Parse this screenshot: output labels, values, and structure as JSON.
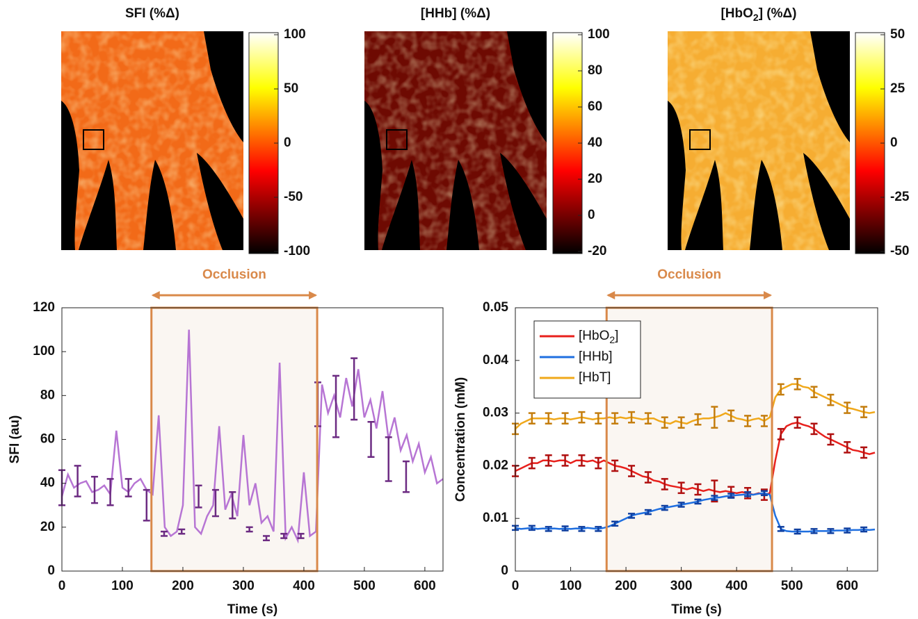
{
  "heatmaps": [
    {
      "title": "SFI (%Δ)",
      "clim": [
        -100,
        100
      ],
      "ticks": [
        100,
        50,
        0,
        -50,
        -100
      ],
      "color": "#f26a18"
    },
    {
      "title": "[HHb] (%Δ)",
      "clim": [
        -20,
        100
      ],
      "ticks": [
        100,
        80,
        60,
        40,
        20,
        0,
        -20
      ],
      "color": "#6e0a02"
    },
    {
      "title": [
        "[HbO",
        "2",
        "] (%Δ)"
      ],
      "clim": [
        -50,
        50
      ],
      "ticks": [
        50,
        25,
        0,
        -25,
        -50
      ],
      "color": "#f6ad32"
    }
  ],
  "chart_data": [
    {
      "type": "line",
      "xlabel": "Time (s)",
      "ylabel": "SFI (au)",
      "xlim": [
        0,
        630
      ],
      "xticks": [
        0,
        100,
        200,
        300,
        400,
        500,
        600
      ],
      "ylim": [
        0,
        120
      ],
      "yticks": [
        0,
        20,
        40,
        60,
        80,
        100,
        120
      ],
      "occlusion": {
        "label": "Occlusion",
        "range": [
          148,
          422
        ],
        "color": "#d9894a"
      },
      "x": [
        0,
        10,
        20,
        30,
        40,
        50,
        60,
        70,
        80,
        90,
        100,
        110,
        120,
        130,
        140,
        150,
        160,
        170,
        180,
        190,
        200,
        210,
        220,
        230,
        240,
        250,
        260,
        270,
        280,
        290,
        300,
        310,
        320,
        330,
        340,
        350,
        360,
        370,
        380,
        390,
        400,
        410,
        420,
        430,
        440,
        450,
        460,
        470,
        480,
        490,
        500,
        510,
        520,
        530,
        540,
        550,
        560,
        570,
        580,
        590,
        600,
        610,
        620,
        630
      ],
      "series": [
        {
          "color": "#b775d4",
          "values": [
            34,
            44,
            38,
            40,
            41,
            36,
            37,
            39,
            35,
            64,
            38,
            36,
            40,
            42,
            37,
            35,
            71,
            20,
            16,
            18,
            30,
            110,
            20,
            17,
            25,
            30,
            66,
            28,
            35,
            25,
            62,
            30,
            40,
            22,
            25,
            18,
            95,
            15,
            20,
            14,
            45,
            16,
            18,
            85,
            72,
            80,
            70,
            88,
            75,
            92,
            70,
            78,
            65,
            82,
            60,
            70,
            55,
            62,
            50,
            58,
            45,
            52,
            40,
            42
          ],
          "errorbars": {
            "color": "#6c2b82",
            "x": [
              0,
              26,
              54,
              80,
              110,
              140,
              169,
              198,
              226,
              254,
              282,
              310,
              338,
              367,
              395,
              423,
              453,
              483,
              511,
              540,
              569
            ],
            "values": [
              38,
              41,
              37,
              36,
              38,
              30,
              17,
              18,
              34,
              31,
              30,
              19,
              15,
              16,
              16,
              76,
              75,
              83,
              60,
              51,
              43
            ],
            "errors": [
              8,
              7,
              6,
              6,
              4,
              7,
              1,
              1,
              5,
              6,
              6,
              1,
              1,
              1,
              1,
              10,
              14,
              14,
              8,
              10,
              7
            ]
          }
        }
      ]
    },
    {
      "type": "line",
      "xlabel": "Time (s)",
      "ylabel": "Concentration (mM)",
      "xlim": [
        0,
        655
      ],
      "xticks": [
        0,
        100,
        200,
        300,
        400,
        500,
        600
      ],
      "ylim": [
        0,
        0.05
      ],
      "yticks": [
        0,
        0.01,
        0.02,
        0.03,
        0.04,
        0.05
      ],
      "legend": "upper left",
      "occlusion": {
        "label": "Occlusion",
        "range": [
          165,
          464
        ],
        "color": "#d9894a"
      },
      "x": [
        0,
        10,
        20,
        30,
        40,
        50,
        60,
        70,
        80,
        90,
        100,
        110,
        120,
        130,
        140,
        150,
        160,
        170,
        180,
        190,
        200,
        210,
        220,
        230,
        240,
        250,
        260,
        270,
        280,
        290,
        300,
        310,
        320,
        330,
        340,
        350,
        360,
        370,
        380,
        390,
        400,
        410,
        420,
        430,
        440,
        450,
        460,
        470,
        480,
        490,
        500,
        510,
        520,
        530,
        540,
        550,
        560,
        570,
        580,
        590,
        600,
        610,
        620,
        630,
        640,
        650
      ],
      "series": [
        {
          "name": [
            "[HbO",
            "2",
            "]"
          ],
          "color": "#e8201c",
          "values": [
            0.019,
            0.0195,
            0.02,
            0.0205,
            0.0205,
            0.021,
            0.021,
            0.0208,
            0.021,
            0.021,
            0.0205,
            0.021,
            0.021,
            0.0208,
            0.021,
            0.0205,
            0.021,
            0.0205,
            0.02,
            0.0198,
            0.0195,
            0.019,
            0.0185,
            0.018,
            0.0178,
            0.0172,
            0.017,
            0.0165,
            0.0162,
            0.016,
            0.0158,
            0.0155,
            0.0158,
            0.0155,
            0.0152,
            0.0155,
            0.0152,
            0.015,
            0.0152,
            0.015,
            0.0148,
            0.015,
            0.0148,
            0.0145,
            0.0148,
            0.0145,
            0.0148,
            0.021,
            0.026,
            0.0275,
            0.028,
            0.0282,
            0.0278,
            0.0275,
            0.027,
            0.0262,
            0.0255,
            0.025,
            0.0245,
            0.024,
            0.0235,
            0.023,
            0.0228,
            0.0225,
            0.0222,
            0.0225
          ],
          "errorbars": {
            "color": "#b01010",
            "x": [
              0,
              30,
              60,
              90,
              120,
              150,
              180,
              210,
              240,
              270,
              300,
              330,
              360,
              390,
              420,
              450,
              480,
              510,
              540,
              570,
              600,
              630
            ],
            "values": [
              0.019,
              0.0205,
              0.021,
              0.021,
              0.021,
              0.0205,
              0.02,
              0.019,
              0.0178,
              0.0165,
              0.0158,
              0.0155,
              0.0152,
              0.015,
              0.0148,
              0.0145,
              0.026,
              0.0282,
              0.027,
              0.025,
              0.0235,
              0.0225
            ],
            "errors": [
              0.001,
              0.001,
              0.001,
              0.001,
              0.001,
              0.001,
              0.001,
              0.001,
              0.001,
              0.001,
              0.001,
              0.001,
              0.002,
              0.001,
              0.001,
              0.001,
              0.001,
              0.001,
              0.001,
              0.001,
              0.001,
              0.001
            ]
          }
        },
        {
          "name": "[HHb]",
          "color": "#1f6fe0",
          "values": [
            0.0082,
            0.008,
            0.0081,
            0.0082,
            0.008,
            0.0081,
            0.008,
            0.0081,
            0.008,
            0.0081,
            0.008,
            0.0081,
            0.008,
            0.0082,
            0.0081,
            0.008,
            0.0082,
            0.0085,
            0.009,
            0.0095,
            0.01,
            0.0105,
            0.0108,
            0.011,
            0.0112,
            0.0115,
            0.0118,
            0.012,
            0.0122,
            0.0124,
            0.0126,
            0.0128,
            0.013,
            0.0132,
            0.0135,
            0.0137,
            0.0139,
            0.014,
            0.0142,
            0.0143,
            0.0144,
            0.0145,
            0.0146,
            0.0145,
            0.0147,
            0.0148,
            0.0145,
            0.0105,
            0.008,
            0.0076,
            0.0075,
            0.0075,
            0.0075,
            0.0075,
            0.0076,
            0.0076,
            0.0076,
            0.0076,
            0.0077,
            0.0077,
            0.0077,
            0.0078,
            0.0078,
            0.0079,
            0.0078,
            0.0079
          ],
          "errorbars": {
            "color": "#0f3fa0",
            "x": [
              0,
              30,
              60,
              90,
              120,
              150,
              180,
              210,
              240,
              270,
              300,
              330,
              360,
              390,
              420,
              450,
              480,
              510,
              540,
              570,
              600,
              630
            ],
            "values": [
              0.0082,
              0.0082,
              0.008,
              0.0081,
              0.008,
              0.008,
              0.009,
              0.0105,
              0.0112,
              0.012,
              0.0126,
              0.0132,
              0.0139,
              0.0143,
              0.0146,
              0.0148,
              0.008,
              0.0075,
              0.0076,
              0.0076,
              0.0077,
              0.0079
            ],
            "errors": [
              0.0004,
              0.0004,
              0.0004,
              0.0004,
              0.0004,
              0.0004,
              0.0004,
              0.0004,
              0.0004,
              0.0004,
              0.0004,
              0.0004,
              0.0004,
              0.0004,
              0.0004,
              0.0004,
              0.0004,
              0.0004,
              0.0004,
              0.0004,
              0.0004,
              0.0004
            ]
          }
        },
        {
          "name": "[HbT]",
          "color": "#f0a81a",
          "values": [
            0.027,
            0.028,
            0.0285,
            0.029,
            0.029,
            0.029,
            0.029,
            0.0288,
            0.029,
            0.029,
            0.0288,
            0.029,
            0.0292,
            0.029,
            0.0288,
            0.029,
            0.029,
            0.0292,
            0.029,
            0.0292,
            0.029,
            0.0292,
            0.029,
            0.0288,
            0.029,
            0.029,
            0.0285,
            0.0282,
            0.028,
            0.0285,
            0.0282,
            0.028,
            0.0285,
            0.0288,
            0.029,
            0.029,
            0.0292,
            0.0295,
            0.03,
            0.0295,
            0.029,
            0.0288,
            0.0285,
            0.0288,
            0.029,
            0.0285,
            0.0292,
            0.033,
            0.0345,
            0.035,
            0.0355,
            0.0355,
            0.035,
            0.0348,
            0.034,
            0.0335,
            0.033,
            0.0325,
            0.032,
            0.0315,
            0.031,
            0.0308,
            0.0305,
            0.0302,
            0.03,
            0.0302
          ],
          "errorbars": {
            "color": "#c47d0e",
            "x": [
              0,
              30,
              60,
              90,
              120,
              150,
              180,
              210,
              240,
              270,
              300,
              330,
              360,
              390,
              420,
              450,
              480,
              510,
              540,
              570,
              600,
              630
            ],
            "values": [
              0.027,
              0.029,
              0.029,
              0.029,
              0.0292,
              0.029,
              0.029,
              0.0292,
              0.029,
              0.0282,
              0.0282,
              0.0288,
              0.0292,
              0.0295,
              0.0285,
              0.0285,
              0.0345,
              0.0355,
              0.034,
              0.0325,
              0.031,
              0.0302
            ],
            "errors": [
              0.001,
              0.001,
              0.001,
              0.001,
              0.001,
              0.001,
              0.001,
              0.001,
              0.001,
              0.001,
              0.001,
              0.001,
              0.002,
              0.001,
              0.001,
              0.001,
              0.001,
              0.001,
              0.001,
              0.001,
              0.001,
              0.001
            ]
          }
        }
      ]
    }
  ]
}
